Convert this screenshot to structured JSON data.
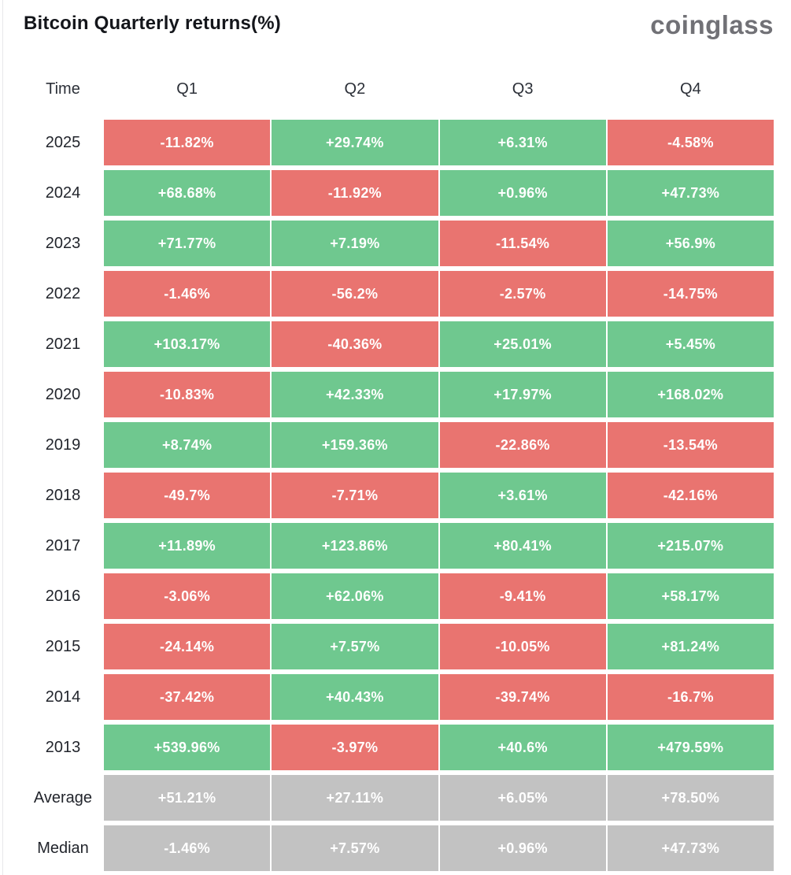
{
  "header": {
    "title": "Bitcoin Quarterly returns(%)",
    "logo": "coinglass"
  },
  "table": {
    "columns": [
      "Time",
      "Q1",
      "Q2",
      "Q3",
      "Q4"
    ],
    "colors": {
      "positive": "#6FC88F",
      "negative": "#E97470",
      "summary": "#C2C2C2",
      "cell_text": "#ffffff"
    },
    "rows": [
      {
        "label": "2025",
        "type": "data",
        "values": [
          "-11.82%",
          "+29.74%",
          "+6.31%",
          "-4.58%"
        ]
      },
      {
        "label": "2024",
        "type": "data",
        "values": [
          "+68.68%",
          "-11.92%",
          "+0.96%",
          "+47.73%"
        ]
      },
      {
        "label": "2023",
        "type": "data",
        "values": [
          "+71.77%",
          "+7.19%",
          "-11.54%",
          "+56.9%"
        ]
      },
      {
        "label": "2022",
        "type": "data",
        "values": [
          "-1.46%",
          "-56.2%",
          "-2.57%",
          "-14.75%"
        ]
      },
      {
        "label": "2021",
        "type": "data",
        "values": [
          "+103.17%",
          "-40.36%",
          "+25.01%",
          "+5.45%"
        ]
      },
      {
        "label": "2020",
        "type": "data",
        "values": [
          "-10.83%",
          "+42.33%",
          "+17.97%",
          "+168.02%"
        ]
      },
      {
        "label": "2019",
        "type": "data",
        "values": [
          "+8.74%",
          "+159.36%",
          "-22.86%",
          "-13.54%"
        ]
      },
      {
        "label": "2018",
        "type": "data",
        "values": [
          "-49.7%",
          "-7.71%",
          "+3.61%",
          "-42.16%"
        ]
      },
      {
        "label": "2017",
        "type": "data",
        "values": [
          "+11.89%",
          "+123.86%",
          "+80.41%",
          "+215.07%"
        ]
      },
      {
        "label": "2016",
        "type": "data",
        "values": [
          "-3.06%",
          "+62.06%",
          "-9.41%",
          "+58.17%"
        ]
      },
      {
        "label": "2015",
        "type": "data",
        "values": [
          "-24.14%",
          "+7.57%",
          "-10.05%",
          "+81.24%"
        ]
      },
      {
        "label": "2014",
        "type": "data",
        "values": [
          "-37.42%",
          "+40.43%",
          "-39.74%",
          "-16.7%"
        ]
      },
      {
        "label": "2013",
        "type": "data",
        "values": [
          "+539.96%",
          "-3.97%",
          "+40.6%",
          "+479.59%"
        ]
      },
      {
        "label": "Average",
        "type": "summary",
        "values": [
          "+51.21%",
          "+27.11%",
          "+6.05%",
          "+78.50%"
        ]
      },
      {
        "label": "Median",
        "type": "summary",
        "values": [
          "-1.46%",
          "+7.57%",
          "+0.96%",
          "+47.73%"
        ]
      }
    ]
  },
  "chart_data": {
    "type": "heatmap",
    "title": "Bitcoin Quarterly returns(%)",
    "columns": [
      "Q1",
      "Q2",
      "Q3",
      "Q4"
    ],
    "rows": [
      "2025",
      "2024",
      "2023",
      "2022",
      "2021",
      "2020",
      "2019",
      "2018",
      "2017",
      "2016",
      "2015",
      "2014",
      "2013",
      "Average",
      "Median"
    ],
    "unit": "%",
    "values": [
      [
        -11.82,
        29.74,
        6.31,
        -4.58
      ],
      [
        68.68,
        -11.92,
        0.96,
        47.73
      ],
      [
        71.77,
        7.19,
        -11.54,
        56.9
      ],
      [
        -1.46,
        -56.2,
        -2.57,
        -14.75
      ],
      [
        103.17,
        -40.36,
        25.01,
        5.45
      ],
      [
        -10.83,
        42.33,
        17.97,
        168.02
      ],
      [
        8.74,
        159.36,
        -22.86,
        -13.54
      ],
      [
        -49.7,
        -7.71,
        3.61,
        -42.16
      ],
      [
        11.89,
        123.86,
        80.41,
        215.07
      ],
      [
        -3.06,
        62.06,
        -9.41,
        58.17
      ],
      [
        -24.14,
        7.57,
        -10.05,
        81.24
      ],
      [
        -37.42,
        40.43,
        -39.74,
        -16.7
      ],
      [
        539.96,
        -3.97,
        40.6,
        479.59
      ],
      [
        51.21,
        27.11,
        6.05,
        78.5
      ],
      [
        -1.46,
        7.57,
        0.96,
        47.73
      ]
    ],
    "color_rule": "cell green when value positive, red when negative; Average and Median rows gray regardless of sign",
    "legend_position": "none",
    "grid": false
  }
}
